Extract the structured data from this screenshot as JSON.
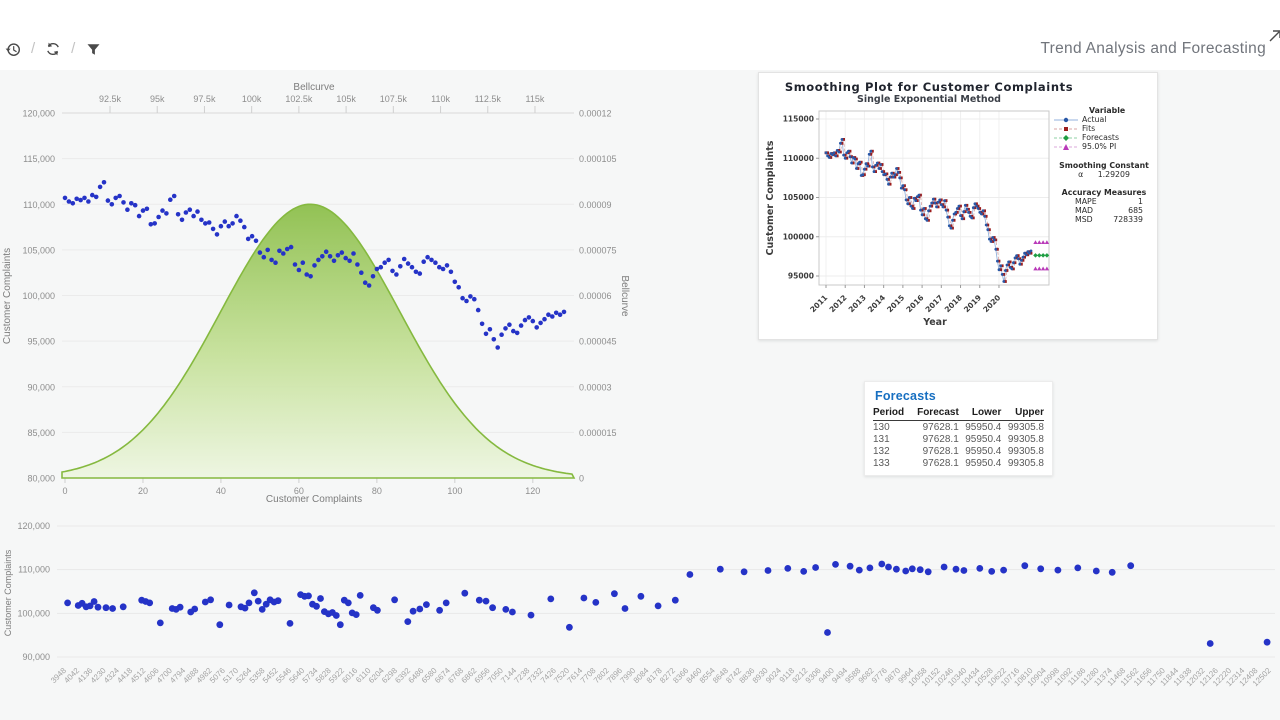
{
  "header": {
    "title": "Trend Analysis and Forecasting",
    "separator": "/",
    "toolbar": [
      {
        "name": "history-restore"
      },
      {
        "name": "refresh"
      },
      {
        "name": "filter"
      }
    ]
  },
  "colors": {
    "scatter_dot": "#2533c7",
    "bell_stroke": "#85b93f",
    "bell_fill_top": "#8fc04f",
    "bell_fill_bottom": "#edf6e0",
    "actual_line": "#93b2dc",
    "actual_marker": "#2857a6",
    "fits_line": "#d8a5a5",
    "fits_marker": "#9c1d1d",
    "forecast_marker": "#1f9e43",
    "pi_marker": "#b93ab9",
    "forecast_title_blue": "#176fc1"
  },
  "series": {
    "complaints": [
      110700,
      110300,
      110100,
      110600,
      110450,
      110700,
      110300,
      111000,
      110800,
      111900,
      112400,
      110400,
      110000,
      110700,
      110900,
      110200,
      109400,
      110100,
      109900,
      108700,
      109300,
      109500,
      107800,
      107900,
      108600,
      109300,
      109000,
      110500,
      110900,
      108900,
      108300,
      109100,
      109400,
      108700,
      109200,
      108300,
      107900,
      108000,
      107300,
      106700,
      107600,
      108100,
      107600,
      107900,
      108700,
      108200,
      107500,
      106200,
      106500,
      106000,
      104700,
      104200,
      105000,
      103900,
      103600,
      104900,
      104600,
      105100,
      105300,
      103400,
      102800,
      103600,
      102300,
      102100,
      103300,
      103900,
      104300,
      104800,
      104300,
      103800,
      104400,
      104700,
      104100,
      103800,
      104600,
      103400,
      102500,
      101400,
      101100,
      102100,
      102900,
      103100,
      103600,
      103900,
      102700,
      102300,
      103200,
      104000,
      103500,
      103100,
      102600,
      102400,
      103700,
      104200,
      103900,
      103600,
      103100,
      102900,
      103300,
      102600,
      101500,
      100900,
      99700,
      99400,
      99900,
      99600,
      98400,
      96900,
      95800,
      96300,
      95200,
      94300,
      95700,
      96400,
      96800,
      96100,
      95900,
      96700,
      97300,
      97600,
      97200,
      96500,
      97000,
      97400,
      97900,
      97700,
      98100,
      97900,
      98200
    ]
  },
  "chart_data": [
    {
      "type": "scatter",
      "name": "complaints-with-bellcurve",
      "left_axis": {
        "title": "Customer Complaints",
        "min": 80000,
        "max": 120000,
        "tick_values": [
          80000,
          85000,
          90000,
          95000,
          100000,
          105000,
          110000,
          115000,
          120000
        ],
        "tick_labels": [
          "80,000",
          "85,000",
          "90,000",
          "95,000",
          "100,000",
          "105,000",
          "110,000",
          "115,000",
          "120,000"
        ]
      },
      "right_axis": {
        "title": "Bellcurve",
        "min": 0,
        "max": 0.00012,
        "tick_labels": [
          "0",
          "0.000015",
          "0.00003",
          "0.000045",
          "0.00006",
          "0.000075",
          "0.00009",
          "0.000105",
          "0.00012"
        ]
      },
      "top_axis": {
        "title": "Bellcurve",
        "tick_values": [
          92500,
          95000,
          97500,
          100000,
          102500,
          105000,
          107500,
          110000,
          112500,
          115000
        ],
        "tick_labels": [
          "92.5k",
          "95k",
          "97.5k",
          "100k",
          "102.5k",
          "105k",
          "107.5k",
          "110k",
          "112.5k",
          "115k"
        ]
      },
      "bottom_axis": {
        "title": "Customer Complaints",
        "tick_values": [
          0,
          20,
          40,
          60,
          80,
          100,
          120
        ],
        "tick_labels": [
          "0",
          "20",
          "40",
          "60",
          "80",
          "100",
          "120"
        ],
        "x_max": 128
      },
      "points_ref": "series.complaints",
      "bellcurve": {
        "mean": 103100,
        "sd": 4750,
        "peak": 9e-05
      }
    },
    {
      "type": "line",
      "name": "smoothing-plot",
      "title": "Smoothing Plot for Customer Complaints",
      "subtitle": "Single Exponential Method",
      "xlabel": "Year",
      "ylabel": "Customer Complaints",
      "yticks": [
        95000,
        100000,
        105000,
        110000,
        115000
      ],
      "years": [
        "2011",
        "2012",
        "2013",
        "2014",
        "2015",
        "2016",
        "2017",
        "2018",
        "2019",
        "2020"
      ],
      "actual_ref": "series.complaints",
      "legend": {
        "header": "Variable",
        "entries": [
          {
            "label": "Actual",
            "marker": "circle",
            "line": "solid",
            "color": "#2857a6",
            "line_color": "#93b2dc"
          },
          {
            "label": "Fits",
            "marker": "square",
            "line": "dashed",
            "color": "#9c1d1d",
            "line_color": "#d8a5a5"
          },
          {
            "label": "Forecasts",
            "marker": "diamond",
            "line": "dashed",
            "color": "#1f9e43",
            "line_color": "#8fd0a5"
          },
          {
            "label": "95.0% PI",
            "marker": "triangle",
            "line": "dashed",
            "color": "#b93ab9",
            "line_color": "#dba8db"
          }
        ]
      },
      "smoothing_constant": {
        "label": "Smoothing Constant",
        "alpha": "α",
        "value": "1.29209"
      },
      "accuracy": {
        "header": "Accuracy Measures",
        "rows": [
          [
            "MAPE",
            "1"
          ],
          [
            "MAD",
            "685"
          ],
          [
            "MSD",
            "728339"
          ]
        ]
      },
      "forecast_value": 97628.1,
      "pi_upper": 99305.8,
      "pi_lower": 95950.4
    },
    {
      "type": "scatter",
      "name": "complaints-by-bin",
      "ylabel": "Customer Complaints",
      "ytick_values": [
        90000,
        100000,
        110000,
        120000
      ],
      "ytick_labels": [
        "90,000",
        "100,000",
        "110,000",
        "120,000"
      ],
      "xlabels": [
        "3948",
        "4042",
        "4136",
        "4230",
        "4324",
        "4418",
        "4512",
        "4606",
        "4700",
        "4794",
        "4888",
        "4982",
        "5076",
        "5170",
        "5264",
        "5358",
        "5452",
        "5546",
        "5640",
        "5734",
        "5828",
        "5922",
        "6016",
        "6110",
        "6204",
        "6298",
        "6392",
        "6486",
        "6580",
        "6674",
        "6768",
        "6862",
        "6956",
        "7050",
        "7144",
        "7238",
        "7332",
        "7426",
        "7520",
        "7614",
        "7708",
        "7802",
        "7896",
        "7990",
        "8084",
        "8178",
        "8272",
        "8366",
        "8460",
        "8554",
        "8648",
        "8742",
        "8836",
        "8930",
        "9024",
        "9118",
        "9212",
        "9306",
        "9400",
        "9494",
        "9588",
        "9682",
        "9776",
        "9870",
        "9964",
        "10058",
        "10152",
        "10246",
        "10340",
        "10434",
        "10528",
        "10622",
        "10716",
        "10810",
        "10904",
        "10998",
        "11092",
        "11186",
        "11280",
        "11374",
        "11468",
        "11562",
        "11656",
        "11750",
        "11844",
        "11938",
        "12032",
        "12126",
        "12220",
        "12314",
        "12408",
        "12502"
      ],
      "points": [
        [
          0.3,
          102400
        ],
        [
          1.1,
          101800
        ],
        [
          1.4,
          102300
        ],
        [
          1.7,
          101500
        ],
        [
          2.0,
          101700
        ],
        [
          2.3,
          102700
        ],
        [
          2.6,
          101400
        ],
        [
          3.2,
          101300
        ],
        [
          3.7,
          101100
        ],
        [
          4.5,
          101500
        ],
        [
          5.9,
          103000
        ],
        [
          6.2,
          102700
        ],
        [
          6.5,
          102400
        ],
        [
          7.3,
          97800
        ],
        [
          8.2,
          101100
        ],
        [
          8.5,
          100900
        ],
        [
          8.8,
          101400
        ],
        [
          9.6,
          100300
        ],
        [
          9.9,
          101000
        ],
        [
          10.7,
          102600
        ],
        [
          11.1,
          103100
        ],
        [
          11.8,
          97400
        ],
        [
          12.5,
          101900
        ],
        [
          13.4,
          101500
        ],
        [
          13.7,
          101200
        ],
        [
          14.0,
          102400
        ],
        [
          14.4,
          104700
        ],
        [
          14.7,
          102800
        ],
        [
          15.0,
          100900
        ],
        [
          15.3,
          102100
        ],
        [
          15.6,
          103100
        ],
        [
          15.9,
          102600
        ],
        [
          16.2,
          102900
        ],
        [
          17.1,
          97700
        ],
        [
          17.9,
          104300
        ],
        [
          18.2,
          103900
        ],
        [
          18.5,
          104000
        ],
        [
          18.8,
          102100
        ],
        [
          19.1,
          101600
        ],
        [
          19.4,
          103400
        ],
        [
          19.7,
          100400
        ],
        [
          20.0,
          99900
        ],
        [
          20.3,
          100200
        ],
        [
          20.6,
          99500
        ],
        [
          20.9,
          97400
        ],
        [
          21.2,
          103000
        ],
        [
          21.5,
          102400
        ],
        [
          21.8,
          100100
        ],
        [
          22.1,
          99700
        ],
        [
          22.4,
          104100
        ],
        [
          23.4,
          101300
        ],
        [
          23.7,
          100700
        ],
        [
          25.0,
          103100
        ],
        [
          26.0,
          98100
        ],
        [
          26.4,
          100500
        ],
        [
          26.9,
          101000
        ],
        [
          27.4,
          102000
        ],
        [
          28.4,
          100700
        ],
        [
          28.9,
          102400
        ],
        [
          30.3,
          104600
        ],
        [
          31.4,
          103000
        ],
        [
          31.9,
          102800
        ],
        [
          32.4,
          101300
        ],
        [
          33.4,
          100900
        ],
        [
          33.9,
          100300
        ],
        [
          35.3,
          99600
        ],
        [
          36.8,
          103300
        ],
        [
          38.2,
          96800
        ],
        [
          39.3,
          103500
        ],
        [
          40.2,
          102500
        ],
        [
          41.6,
          104500
        ],
        [
          42.4,
          101100
        ],
        [
          43.6,
          103900
        ],
        [
          44.9,
          101700
        ],
        [
          46.2,
          103000
        ],
        [
          47.3,
          108900
        ],
        [
          49.6,
          110100
        ],
        [
          51.4,
          109500
        ],
        [
          53.2,
          109800
        ],
        [
          54.7,
          110300
        ],
        [
          55.9,
          109600
        ],
        [
          56.8,
          110500
        ],
        [
          57.7,
          95600
        ],
        [
          58.3,
          111200
        ],
        [
          59.4,
          110800
        ],
        [
          60.1,
          109900
        ],
        [
          60.9,
          110400
        ],
        [
          61.8,
          111300
        ],
        [
          62.3,
          110600
        ],
        [
          62.9,
          110100
        ],
        [
          63.6,
          109700
        ],
        [
          64.1,
          110200
        ],
        [
          64.7,
          110000
        ],
        [
          65.3,
          109500
        ],
        [
          66.5,
          110600
        ],
        [
          67.4,
          110100
        ],
        [
          68.0,
          109800
        ],
        [
          69.2,
          110300
        ],
        [
          70.1,
          109600
        ],
        [
          71.0,
          109900
        ],
        [
          72.6,
          110900
        ],
        [
          73.8,
          110200
        ],
        [
          75.1,
          109900
        ],
        [
          76.6,
          110400
        ],
        [
          78.0,
          109700
        ],
        [
          79.2,
          109400
        ],
        [
          80.6,
          110900
        ],
        [
          86.6,
          93100
        ],
        [
          90.9,
          93400
        ]
      ]
    }
  ],
  "forecasts_table": {
    "title": "Forecasts",
    "columns": [
      "Period",
      "Forecast",
      "Lower",
      "Upper"
    ],
    "rows": [
      [
        "130",
        "97628.1",
        "95950.4",
        "99305.8"
      ],
      [
        "131",
        "97628.1",
        "95950.4",
        "99305.8"
      ],
      [
        "132",
        "97628.1",
        "95950.4",
        "99305.8"
      ],
      [
        "133",
        "97628.1",
        "95950.4",
        "99305.8"
      ]
    ]
  }
}
